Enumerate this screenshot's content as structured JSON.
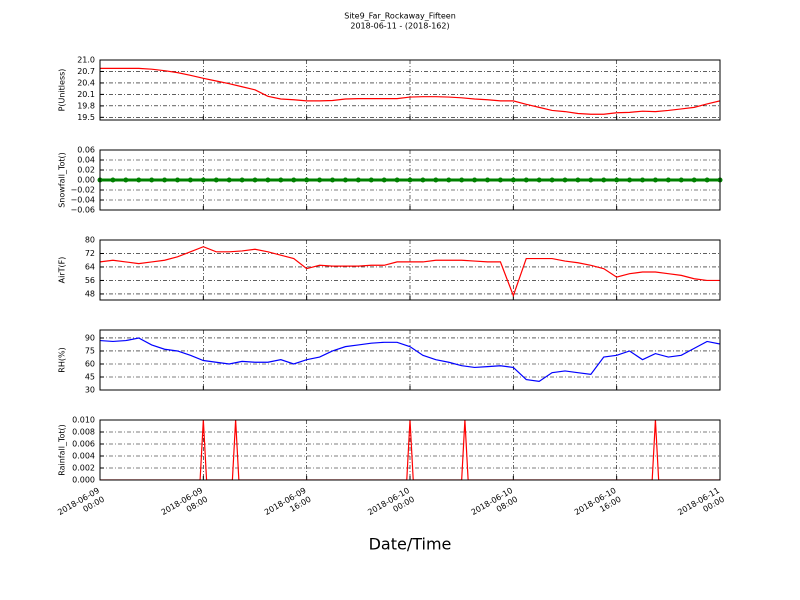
{
  "title": "Site9_Far_Rockaway_Fifteen",
  "subtitle": "2018-06-11 - (2018-162)",
  "xlabel": "Date/Time",
  "xlim": [
    "2018-06-09 00:00",
    "2018-06-11 00:00"
  ],
  "xticks": [
    "2018-06-09 00:00",
    "2018-06-09 08:00",
    "2018-06-09 16:00",
    "2018-06-10 00:00",
    "2018-06-10 08:00",
    "2018-06-10 16:00",
    "2018-06-11 00:00"
  ],
  "grid": true,
  "x": [
    "2018-06-09 00:00",
    "2018-06-09 01:00",
    "2018-06-09 02:00",
    "2018-06-09 03:00",
    "2018-06-09 04:00",
    "2018-06-09 05:00",
    "2018-06-09 06:00",
    "2018-06-09 07:00",
    "2018-06-09 08:00",
    "2018-06-09 09:00",
    "2018-06-09 10:00",
    "2018-06-09 11:00",
    "2018-06-09 12:00",
    "2018-06-09 13:00",
    "2018-06-09 14:00",
    "2018-06-09 15:00",
    "2018-06-09 16:00",
    "2018-06-09 17:00",
    "2018-06-09 18:00",
    "2018-06-09 19:00",
    "2018-06-09 20:00",
    "2018-06-09 21:00",
    "2018-06-09 22:00",
    "2018-06-09 23:00",
    "2018-06-10 00:00",
    "2018-06-10 01:00",
    "2018-06-10 02:00",
    "2018-06-10 03:00",
    "2018-06-10 04:00",
    "2018-06-10 05:00",
    "2018-06-10 06:00",
    "2018-06-10 07:00",
    "2018-06-10 08:00",
    "2018-06-10 09:00",
    "2018-06-10 10:00",
    "2018-06-10 11:00",
    "2018-06-10 12:00",
    "2018-06-10 13:00",
    "2018-06-10 14:00",
    "2018-06-10 15:00",
    "2018-06-10 16:00",
    "2018-06-10 17:00",
    "2018-06-10 18:00",
    "2018-06-10 19:00",
    "2018-06-10 20:00",
    "2018-06-10 21:00",
    "2018-06-10 22:00",
    "2018-06-10 23:00",
    "2018-06-11 00:00"
  ],
  "chart_data": [
    {
      "type": "line",
      "ylabel": "P(Unitless)",
      "color": "#ff0000",
      "ylim": [
        19.43,
        21.0
      ],
      "yticks": [
        19.5,
        19.8,
        20.1,
        20.4,
        20.7,
        {
          "value": 21.0,
          "label": "21.0"
        }
      ],
      "values": [
        20.78,
        20.78,
        20.78,
        20.78,
        20.76,
        20.72,
        20.67,
        20.6,
        20.52,
        20.45,
        20.38,
        20.3,
        20.22,
        20.05,
        19.98,
        19.96,
        19.93,
        19.93,
        19.94,
        19.98,
        19.99,
        19.99,
        19.99,
        19.99,
        20.03,
        20.04,
        20.04,
        20.03,
        20.01,
        19.98,
        19.96,
        19.93,
        19.93,
        19.84,
        19.76,
        19.68,
        19.65,
        19.6,
        19.58,
        19.58,
        19.62,
        19.63,
        19.66,
        19.65,
        19.68,
        19.72,
        19.76,
        19.85,
        19.93
      ]
    },
    {
      "type": "markers",
      "ylabel": "Snowfall_Tot()",
      "color": "#008000",
      "ylim": [
        -0.06,
        0.06
      ],
      "yticks": [
        {
          "value": -0.06,
          "label": "−0.06"
        },
        {
          "value": -0.04,
          "label": "−0.04"
        },
        {
          "value": -0.02,
          "label": "−0.02"
        },
        {
          "value": 0,
          "label": "0.00"
        },
        0.02,
        0.04,
        0.06
      ],
      "values": [
        0,
        0,
        0,
        0,
        0,
        0,
        0,
        0,
        0,
        0,
        0,
        0,
        0,
        0,
        0,
        0,
        0,
        0,
        0,
        0,
        0,
        0,
        0,
        0,
        0,
        0,
        0,
        0,
        0,
        0,
        0,
        0,
        0,
        0,
        0,
        0,
        0,
        0,
        0,
        0,
        0,
        0,
        0,
        0,
        0,
        0,
        0,
        0,
        0
      ]
    },
    {
      "type": "line",
      "ylabel": "AirT(F)",
      "color": "#ff0000",
      "ylim": [
        44.4,
        80
      ],
      "yticks": [
        48,
        56,
        64,
        72,
        80
      ],
      "values": [
        67,
        68,
        67,
        66,
        67,
        68,
        70,
        73,
        76,
        73,
        73,
        73.5,
        74.5,
        73,
        71,
        69,
        63,
        65,
        64.5,
        64.5,
        64.5,
        65,
        65,
        67,
        67,
        67,
        68,
        68,
        68,
        67.5,
        67,
        67,
        47,
        69,
        69,
        69,
        67.5,
        66.5,
        65,
        63,
        58,
        60,
        61,
        61,
        60,
        59,
        57,
        56,
        56
      ]
    },
    {
      "type": "line",
      "ylabel": "RH(%)",
      "color": "#0000ff",
      "ylim": [
        30,
        99.2
      ],
      "yticks": [
        30,
        45,
        60,
        75,
        90
      ],
      "values": [
        87,
        86,
        87,
        90,
        82,
        77,
        75,
        70,
        64,
        62,
        60,
        63,
        62,
        62,
        65,
        60,
        65,
        68,
        75,
        80,
        82,
        84,
        85,
        85,
        80,
        70,
        65,
        62,
        58,
        56,
        57,
        58,
        56,
        42,
        40,
        50,
        52,
        50,
        48,
        68,
        70,
        75,
        65,
        72,
        68,
        70,
        78,
        86,
        83
      ]
    },
    {
      "type": "line",
      "ylabel": "Rainfall_Tot()",
      "color": "#ff0000",
      "ylim": [
        0,
        0.01
      ],
      "yticks": [
        {
          "value": 0,
          "label": "0.000"
        },
        {
          "value": 0.002,
          "label": "0.002"
        },
        {
          "value": 0.004,
          "label": "0.004"
        },
        {
          "value": 0.006,
          "label": "0.006"
        },
        {
          "value": 0.008,
          "label": "0.008"
        },
        {
          "value": 0.01,
          "label": "0.010"
        }
      ],
      "x": [
        "2018-06-09 00:00",
        "2018-06-09 07:45",
        "2018-06-09 08:00",
        "2018-06-09 08:15",
        "2018-06-09 10:15",
        "2018-06-09 10:30",
        "2018-06-09 10:45",
        "2018-06-09 23:45",
        "2018-06-10 00:00",
        "2018-06-10 00:15",
        "2018-06-10 04:00",
        "2018-06-10 04:15",
        "2018-06-10 04:30",
        "2018-06-10 18:45",
        "2018-06-10 19:00",
        "2018-06-10 19:15",
        "2018-06-11 00:00"
      ],
      "values": [
        0,
        0,
        0.01,
        0,
        0,
        0.01,
        0,
        0,
        0.01,
        0,
        0,
        0.01,
        0,
        0,
        0.01,
        0,
        0
      ]
    }
  ]
}
